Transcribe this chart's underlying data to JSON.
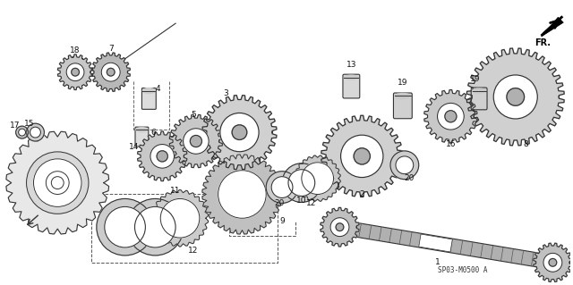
{
  "background_color": "#ffffff",
  "diagram_code": "SP03-M0500 A",
  "line_color": "#333333",
  "fig_width": 6.4,
  "fig_height": 3.19,
  "dpi": 100
}
